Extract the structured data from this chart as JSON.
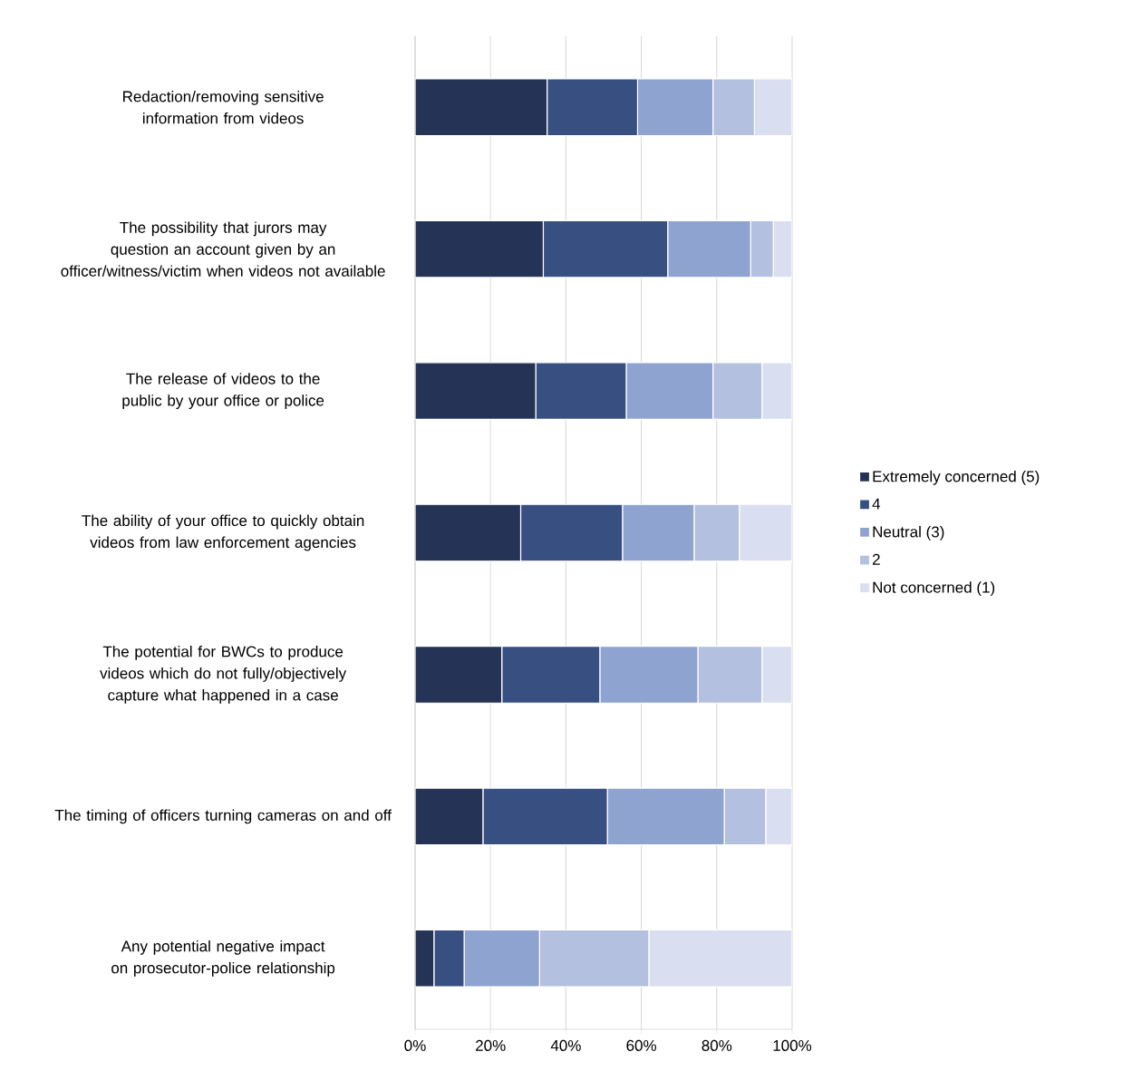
{
  "chart_data": {
    "type": "bar",
    "orientation": "horizontal",
    "stacked": true,
    "categories": [
      "Redaction/removing sensitive information from videos",
      "The possibility that jurors may question an account given by an officer/witness/victim when videos not available",
      "The release of videos to the public by your office or police",
      "The ability of your office to quickly obtain videos from law enforcement agencies",
      "The potential for BWCs to produce videos which do not fully/objectively capture what happened in a case",
      "The timing of officers turning cameras on and off",
      "Any potential negative impact on prosecutor-police relationship"
    ],
    "series": [
      {
        "name": "Extremely concerned (5)",
        "color": "#253356",
        "values": [
          35,
          34,
          32,
          28,
          23,
          18,
          5
        ]
      },
      {
        "name": "4",
        "color": "#384f82",
        "values": [
          24,
          33,
          24,
          27,
          26,
          33,
          8
        ]
      },
      {
        "name": "Neutral (3)",
        "color": "#8fa3d0",
        "values": [
          20,
          22,
          23,
          19,
          26,
          31,
          20
        ]
      },
      {
        "name": "2",
        "color": "#b4c0df",
        "values": [
          11,
          6,
          13,
          12,
          17,
          11,
          29
        ]
      },
      {
        "name": "Not concerned (1)",
        "color": "#d9dff0",
        "values": [
          10,
          5,
          8,
          14,
          8,
          7,
          38
        ]
      }
    ],
    "xlim": [
      0,
      100
    ],
    "xticks": [
      {
        "value": 0,
        "label": "0%"
      },
      {
        "value": 20,
        "label": "20%"
      },
      {
        "value": 40,
        "label": "40%"
      },
      {
        "value": 60,
        "label": "60%"
      },
      {
        "value": 80,
        "label": "80%"
      },
      {
        "value": 100,
        "label": "100%"
      }
    ],
    "grid": "x",
    "legend": "right"
  }
}
